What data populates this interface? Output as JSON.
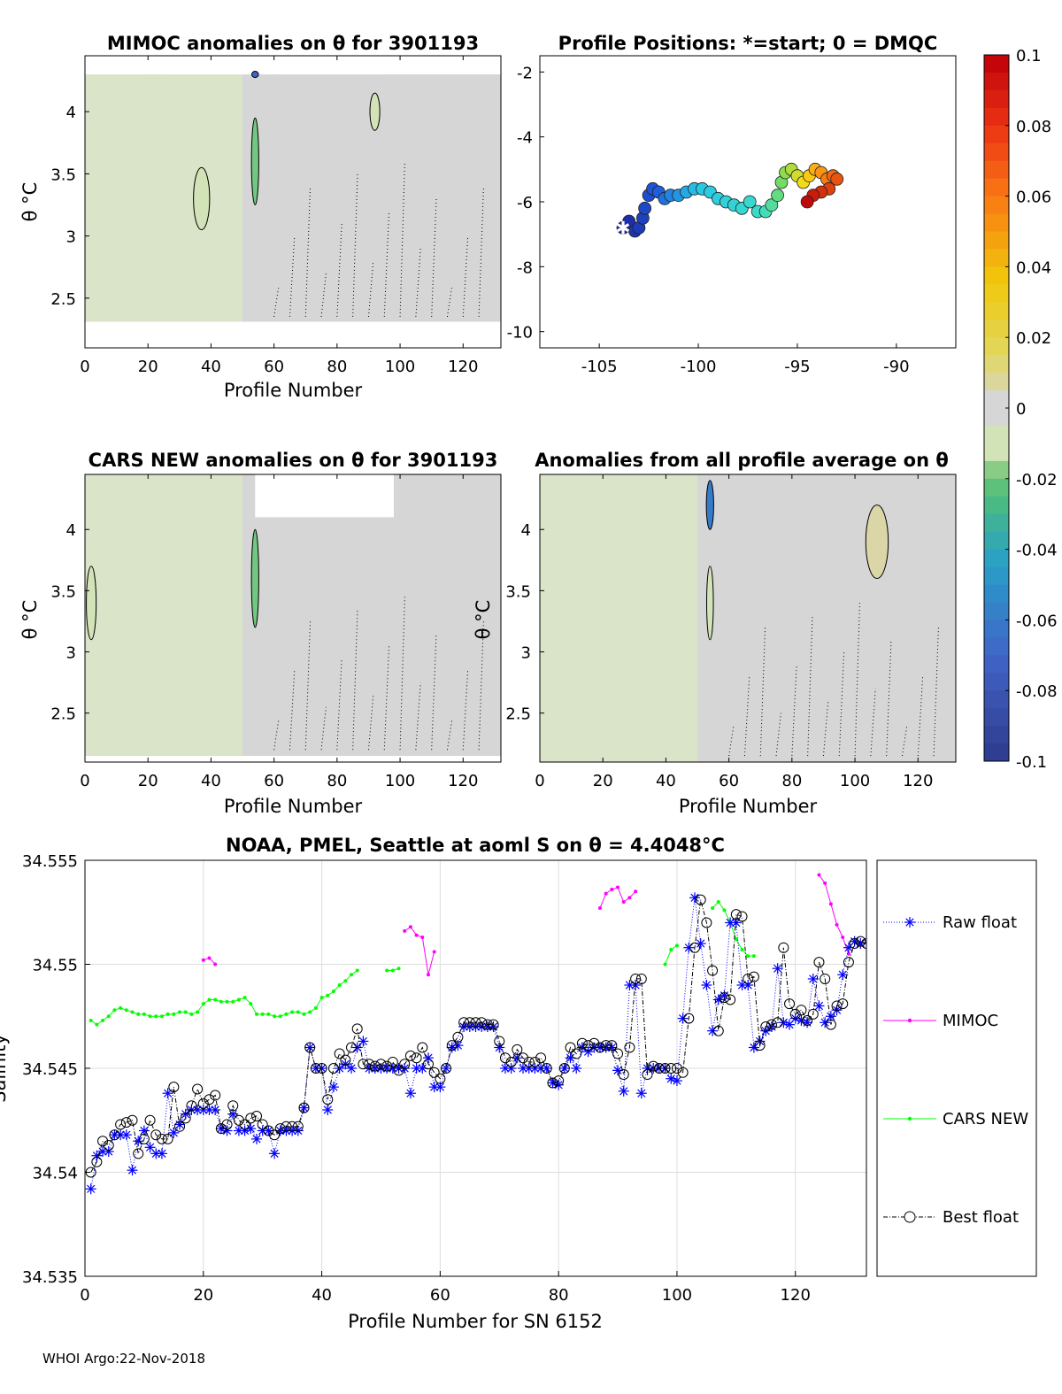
{
  "footer": "WHOI Argo:22-Nov-2018",
  "chart_data": [
    {
      "type": "heatmap",
      "title": "MIMOC anomalies on θ  for 3901193",
      "xlabel": "Profile Number",
      "ylabel": "θ °C",
      "xlim": [
        0,
        132
      ],
      "ylim": [
        2.1,
        4.45
      ],
      "xticks": [
        "0",
        "20",
        "40",
        "60",
        "80",
        "100",
        "120"
      ],
      "yticks": [
        "2.5",
        "3",
        "3.5",
        "4"
      ],
      "background_anomaly": -0.005,
      "data_ybottom": 2.3,
      "data_ytop": 4.3,
      "gaps": [
        {
          "x0": 0,
          "x1": 20,
          "y0": 4.3,
          "y1": 4.45
        },
        {
          "x0": 24,
          "x1": 60,
          "y0": 4.3,
          "y1": 4.45
        },
        {
          "x0": 63,
          "x1": 94,
          "y0": 4.3,
          "y1": 4.45
        },
        {
          "x0": 0,
          "x1": 132,
          "y0": 2.1,
          "y1": 2.31
        }
      ],
      "features": [
        {
          "x": 54,
          "y": 3.6,
          "w": 1.2,
          "h": 0.7,
          "anomaly": -0.02
        },
        {
          "x": 54,
          "y": 4.3,
          "w": 1.0,
          "h": 0.05,
          "anomaly": -0.07
        },
        {
          "x": 37,
          "y": 3.3,
          "w": 4,
          "h": 0.5,
          "anomaly": -0.012
        },
        {
          "x": 92,
          "y": 4.0,
          "w": 2,
          "h": 0.3,
          "anomaly": -0.01
        }
      ]
    },
    {
      "type": "scatter",
      "title": "Profile Positions: *=start; 0 = DMQC",
      "xlim": [
        -108,
        -87
      ],
      "ylim": [
        -10.5,
        -1.5
      ],
      "xticks": [
        "-105",
        "-100",
        "-95",
        "-90"
      ],
      "yticks": [
        "-2",
        "-4",
        "-6",
        "-8",
        "-10"
      ],
      "start": {
        "lon": -103.8,
        "lat": -6.8
      },
      "track": [
        [
          -103.8,
          -6.8
        ],
        [
          -103.5,
          -6.6
        ],
        [
          -103.2,
          -6.9
        ],
        [
          -103.0,
          -6.8
        ],
        [
          -102.8,
          -6.5
        ],
        [
          -102.7,
          -6.2
        ],
        [
          -102.5,
          -5.8
        ],
        [
          -102.3,
          -5.6
        ],
        [
          -102.0,
          -5.7
        ],
        [
          -101.7,
          -5.9
        ],
        [
          -101.4,
          -5.8
        ],
        [
          -101.0,
          -5.8
        ],
        [
          -100.6,
          -5.7
        ],
        [
          -100.2,
          -5.6
        ],
        [
          -99.8,
          -5.6
        ],
        [
          -99.4,
          -5.7
        ],
        [
          -99.0,
          -5.9
        ],
        [
          -98.6,
          -6.0
        ],
        [
          -98.2,
          -6.1
        ],
        [
          -97.8,
          -6.2
        ],
        [
          -97.4,
          -6.0
        ],
        [
          -97.0,
          -6.3
        ],
        [
          -96.6,
          -6.3
        ],
        [
          -96.3,
          -6.1
        ],
        [
          -96.0,
          -5.8
        ],
        [
          -95.8,
          -5.4
        ],
        [
          -95.6,
          -5.1
        ],
        [
          -95.3,
          -5.0
        ],
        [
          -95.0,
          -5.2
        ],
        [
          -94.7,
          -5.4
        ],
        [
          -94.4,
          -5.2
        ],
        [
          -94.1,
          -5.0
        ],
        [
          -93.8,
          -5.1
        ],
        [
          -93.5,
          -5.3
        ],
        [
          -93.2,
          -5.2
        ],
        [
          -93.0,
          -5.3
        ],
        [
          -93.4,
          -5.6
        ],
        [
          -93.8,
          -5.7
        ],
        [
          -94.2,
          -5.8
        ],
        [
          -94.5,
          -6.0
        ]
      ],
      "colorbar": {
        "min": -0.1,
        "max": 0.1,
        "ticks": [
          "0.1",
          "0.08",
          "0.06",
          "0.04",
          "0.02",
          "0",
          "-0.02",
          "-0.04",
          "-0.06",
          "-0.08",
          "-0.1"
        ]
      }
    },
    {
      "type": "heatmap",
      "title": "CARS NEW anomalies on θ for 3901193",
      "xlabel": "Profile Number",
      "ylabel": "θ °C",
      "xlim": [
        0,
        132
      ],
      "ylim": [
        2.1,
        4.45
      ],
      "xticks": [
        "0",
        "20",
        "40",
        "60",
        "80",
        "100",
        "120"
      ],
      "yticks": [
        "2.5",
        "3",
        "3.5",
        "4"
      ],
      "background_anomaly": -0.004,
      "data_ybottom": 2.15,
      "data_ytop": 4.45,
      "gaps": [
        {
          "x0": 54,
          "x1": 98,
          "y0": 4.1,
          "y1": 4.45
        },
        {
          "x0": 0,
          "x1": 132,
          "y0": 2.1,
          "y1": 2.15
        }
      ],
      "features": [
        {
          "x": 54,
          "y": 3.6,
          "w": 1.2,
          "h": 0.8,
          "anomaly": -0.02
        },
        {
          "x": 2,
          "y": 3.4,
          "w": 2,
          "h": 0.6,
          "anomaly": -0.008
        }
      ]
    },
    {
      "type": "heatmap",
      "title": "Anomalies from all profile average on θ",
      "xlabel": "Profile Number",
      "ylabel": "θ °C",
      "xlim": [
        0,
        132
      ],
      "ylim": [
        2.1,
        4.45
      ],
      "xticks": [
        "0",
        "20",
        "40",
        "60",
        "80",
        "100",
        "120"
      ],
      "yticks": [
        "2.5",
        "3",
        "3.5",
        "4"
      ],
      "background_anomaly": 0.002,
      "data_ybottom": 2.1,
      "data_ytop": 4.45,
      "gaps": [],
      "features": [
        {
          "x": 54,
          "y": 4.2,
          "w": 1.2,
          "h": 0.4,
          "anomaly": -0.06
        },
        {
          "x": 54,
          "y": 3.4,
          "w": 1.0,
          "h": 0.6,
          "anomaly": -0.015
        },
        {
          "x": 107,
          "y": 3.9,
          "w": 6,
          "h": 0.6,
          "anomaly": 0.006
        }
      ]
    },
    {
      "type": "line",
      "title": "NOAA, PMEL, Seattle at aoml S on θ = 4.4048°C",
      "xlabel": "Profile Number for SN 6152",
      "ylabel": "Salinity",
      "xlim": [
        0,
        132
      ],
      "ylim": [
        34.535,
        34.555
      ],
      "xticks": [
        "0",
        "20",
        "40",
        "60",
        "80",
        "100",
        "120"
      ],
      "yticks": [
        "34.555",
        "34.55",
        "34.545",
        "34.54",
        "34.535"
      ],
      "grid": true,
      "legend": "outside-right",
      "series": [
        {
          "name": "Raw float",
          "color": "#0000ff",
          "marker": "asterisk",
          "values": [
            34.5392,
            34.5408,
            34.541,
            34.541,
            34.5418,
            34.5418,
            34.5418,
            34.5401,
            34.5415,
            34.542,
            34.5412,
            34.5409,
            34.5409,
            34.5438,
            34.5419,
            34.5423,
            34.5428,
            34.543,
            34.543,
            34.543,
            34.543,
            34.543,
            34.5421,
            34.542,
            34.5428,
            34.542,
            34.542,
            34.5421,
            34.5416,
            34.542,
            34.542,
            34.5409,
            34.542,
            34.542,
            34.542,
            34.542,
            34.5431,
            34.546,
            34.545,
            34.545,
            34.543,
            34.5441,
            34.545,
            34.5452,
            34.545,
            34.546,
            34.5463,
            34.545,
            34.545,
            34.545,
            34.545,
            34.545,
            34.545,
            34.545,
            34.5438,
            34.545,
            34.545,
            34.5455,
            34.5441,
            34.5441,
            34.545,
            34.546,
            34.5461,
            34.547,
            34.547,
            34.547,
            34.547,
            34.547,
            34.547,
            34.546,
            34.545,
            34.545,
            34.5455,
            34.545,
            34.545,
            34.545,
            34.545,
            34.545,
            34.5443,
            34.5442,
            34.545,
            34.5455,
            34.545,
            34.546,
            34.5458,
            34.546,
            34.546,
            34.546,
            34.546,
            34.5449,
            34.5439,
            34.549,
            34.549,
            34.5438,
            34.545,
            34.545,
            34.545,
            34.545,
            34.5445,
            34.5444,
            34.5474,
            34.5508,
            34.5532,
            34.551,
            34.549,
            34.5468,
            34.5483,
            34.5485,
            34.552,
            34.552,
            34.549,
            34.549,
            34.546,
            34.5463,
            34.5468,
            34.547,
            34.5498,
            34.5472,
            34.5471,
            34.5474,
            34.5473,
            34.5472,
            34.5493,
            34.548,
            34.5472,
            34.5475,
            34.5478,
            34.5495,
            34.5508,
            34.5511,
            34.551
          ]
        },
        {
          "name": "MIMOC",
          "color": "#ff00ff",
          "marker": "dot",
          "segments": [
            {
              "x": [
                20,
                21,
                22
              ],
              "values": [
                34.5502,
                34.5503,
                34.55
              ]
            },
            {
              "x": [
                54,
                55,
                56,
                57,
                58,
                59
              ],
              "values": [
                34.5516,
                34.5518,
                34.5514,
                34.5513,
                34.5495,
                34.5506
              ]
            },
            {
              "x": [
                87,
                88,
                89,
                90,
                91,
                92,
                93
              ],
              "values": [
                34.5527,
                34.5534,
                34.5536,
                34.5537,
                34.553,
                34.5532,
                34.5535
              ]
            },
            {
              "x": [
                124,
                125,
                126,
                127,
                128,
                129
              ],
              "values": [
                34.5543,
                34.5539,
                34.5529,
                34.5519,
                34.5513,
                34.5505
              ]
            }
          ]
        },
        {
          "name": "CARS NEW",
          "color": "#00ff00",
          "marker": "dot",
          "segments": [
            {
              "x": [
                1,
                2,
                3,
                4,
                5,
                6,
                7,
                8,
                9,
                10,
                11,
                12,
                13,
                14,
                15,
                16,
                17,
                18,
                19,
                20,
                21,
                22,
                23,
                24,
                25,
                26,
                27,
                28,
                29,
                30,
                31,
                32,
                33,
                34,
                35,
                36,
                37,
                38,
                39,
                40,
                41,
                42,
                43,
                44,
                45,
                46
              ],
              "values": [
                34.5473,
                34.5471,
                34.5473,
                34.5475,
                34.5478,
                34.5479,
                34.5478,
                34.5477,
                34.5476,
                34.5476,
                34.5475,
                34.5475,
                34.5475,
                34.5476,
                34.5476,
                34.5477,
                34.5477,
                34.5476,
                34.5477,
                34.5481,
                34.5483,
                34.5483,
                34.5482,
                34.5482,
                34.5482,
                34.5483,
                34.5484,
                34.5481,
                34.5476,
                34.5476,
                34.5476,
                34.5475,
                34.5475,
                34.5476,
                34.5477,
                34.5477,
                34.5476,
                34.5477,
                34.5479,
                34.5484,
                34.5485,
                34.5487,
                34.549,
                34.5492,
                34.5495,
                34.5497
              ]
            },
            {
              "x": [
                51,
                52,
                53
              ],
              "values": [
                34.5497,
                34.5497,
                34.5498
              ]
            },
            {
              "x": [
                98,
                99,
                100
              ],
              "values": [
                34.55,
                34.5507,
                34.5509
              ]
            },
            {
              "x": [
                106,
                107,
                108,
                109,
                110,
                111,
                112,
                113
              ],
              "values": [
                34.5527,
                34.553,
                34.5526,
                34.552,
                34.5512,
                34.5507,
                34.5504,
                34.5504
              ]
            }
          ]
        },
        {
          "name": "Best float",
          "color": "#000000",
          "marker": "circle",
          "values": [
            34.54,
            34.5405,
            34.5415,
            34.5413,
            34.5418,
            34.5423,
            34.5424,
            34.5425,
            34.5409,
            34.5416,
            34.5425,
            34.5418,
            34.5416,
            34.5416,
            34.5441,
            34.5422,
            34.5426,
            34.5432,
            34.544,
            34.5433,
            34.5435,
            34.5437,
            34.5421,
            34.5423,
            34.5432,
            34.5425,
            34.5423,
            34.5426,
            34.5427,
            34.5423,
            34.542,
            34.5418,
            34.5421,
            34.5422,
            34.5422,
            34.5422,
            34.5431,
            34.546,
            34.545,
            34.545,
            34.5435,
            34.545,
            34.5457,
            34.5454,
            34.546,
            34.5469,
            34.5452,
            34.5452,
            34.5451,
            34.5452,
            34.5451,
            34.5453,
            34.5449,
            34.5452,
            34.5456,
            34.5455,
            34.546,
            34.5452,
            34.5448,
            34.5445,
            34.545,
            34.5461,
            34.5465,
            34.5472,
            34.5472,
            34.5472,
            34.5472,
            34.5471,
            34.5471,
            34.5463,
            34.5455,
            34.5453,
            34.5459,
            34.5455,
            34.5453,
            34.5453,
            34.5455,
            34.545,
            34.5443,
            34.5444,
            34.545,
            34.546,
            34.5457,
            34.5462,
            34.5461,
            34.5462,
            34.546,
            34.5461,
            34.5461,
            34.5457,
            34.5447,
            34.546,
            34.5493,
            34.5493,
            34.5447,
            34.5451,
            34.545,
            34.545,
            34.545,
            34.545,
            34.5448,
            34.5474,
            34.5508,
            34.5531,
            34.552,
            34.5497,
            34.5468,
            34.5484,
            34.5483,
            34.5524,
            34.5523,
            34.5493,
            34.5494,
            34.5461,
            34.547,
            34.5471,
            34.5472,
            34.5508,
            34.5481,
            34.5476,
            34.5478,
            34.5473,
            34.5476,
            34.5501,
            34.5493,
            34.5471,
            34.548,
            34.5481,
            34.5501,
            34.551,
            34.5511,
            34.551
          ]
        }
      ]
    }
  ]
}
